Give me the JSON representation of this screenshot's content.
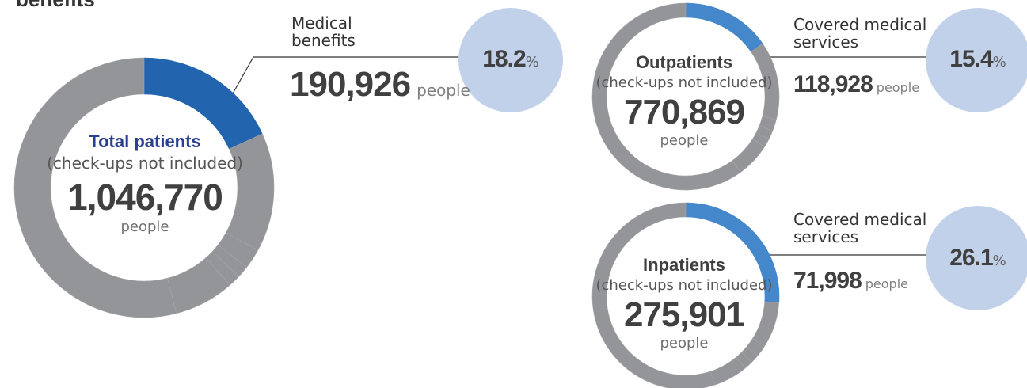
{
  "heading": "benefits",
  "chart_data": [
    {
      "type": "pie",
      "title": "Total patients",
      "subtitle": "(check-ups not included)",
      "total": "1,046,770",
      "unit": "people",
      "highlight": {
        "label": "Medical benefits",
        "value": "190,926",
        "unit": "people",
        "percent": "18.2",
        "percent_symbol": "%"
      },
      "slice_fractions": [
        0.182,
        0.148,
        0.025,
        0.015,
        0.015,
        0.075,
        0.54
      ],
      "colors": {
        "highlight": "#2264ae",
        "base": "#939598",
        "title": "#2a3f8f",
        "circle": "#c2d1ea"
      }
    },
    {
      "type": "pie",
      "title": "Outpatients",
      "subtitle": "(check-ups not included)",
      "total": "770,869",
      "unit": "people",
      "highlight": {
        "label": "Covered medical services",
        "value": "118,928",
        "unit": "people",
        "percent": "15.4",
        "percent_symbol": "%"
      },
      "slice_fractions": [
        0.154,
        0.136,
        0.02,
        0.015,
        0.015,
        0.06,
        0.6
      ],
      "colors": {
        "highlight": "#4587cb",
        "base": "#939598",
        "title": "#404040",
        "circle": "#c2d1ea"
      }
    },
    {
      "type": "pie",
      "title": "Inpatients",
      "subtitle": "(check-ups not included)",
      "total": "275,901",
      "unit": "people",
      "highlight": {
        "label": "Covered medical services",
        "value": "71,998",
        "unit": "people",
        "percent": "26.1",
        "percent_symbol": "%"
      },
      "slice_fractions": [
        0.261,
        0.079,
        0.02,
        0.015,
        0.015,
        0.06,
        0.55
      ],
      "colors": {
        "highlight": "#4587cb",
        "base": "#939598",
        "title": "#404040",
        "circle": "#c2d1ea"
      }
    }
  ]
}
